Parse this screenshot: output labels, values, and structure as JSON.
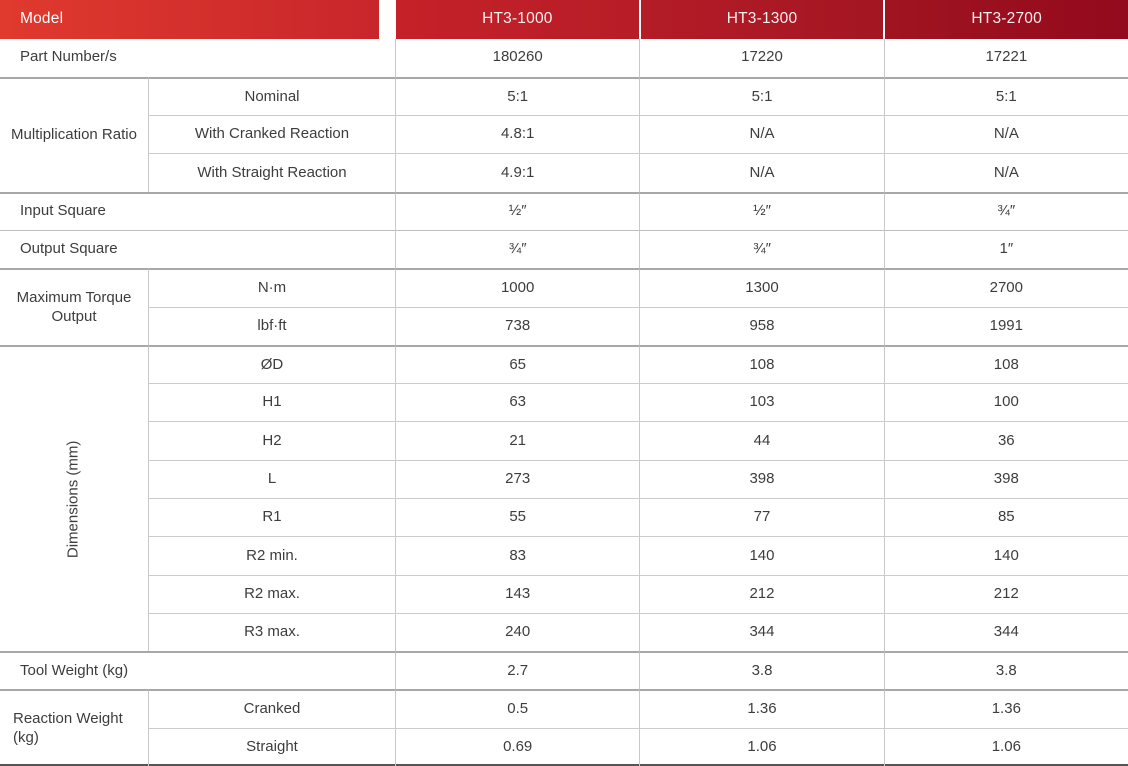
{
  "header": {
    "model_label": "Model",
    "columns": [
      "HT3-1000",
      "HT3-1300",
      "HT3-2700"
    ]
  },
  "rows": {
    "part_number": {
      "label": "Part Number/s",
      "values": [
        "180260",
        "17220",
        "17221"
      ]
    },
    "multiplication_ratio": {
      "group_label": "Multiplication Ratio",
      "nominal": {
        "label": "Nominal",
        "values": [
          "5:1",
          "5:1",
          "5:1"
        ]
      },
      "cranked": {
        "label": "With Cranked Reaction",
        "values": [
          "4.8:1",
          "N/A",
          "N/A"
        ]
      },
      "straight": {
        "label": "With Straight Reaction",
        "values": [
          "4.9:1",
          "N/A",
          "N/A"
        ]
      }
    },
    "input_square": {
      "label": "Input Square",
      "values": [
        "½″",
        "½″",
        "¾″"
      ]
    },
    "output_square": {
      "label": "Output Square",
      "values": [
        "¾″",
        "¾″",
        "1″"
      ]
    },
    "max_torque": {
      "group_label": "Maximum Torque Output",
      "nm": {
        "label": "N·m",
        "values": [
          "1000",
          "1300",
          "2700"
        ]
      },
      "lbfft": {
        "label": "lbf·ft",
        "values": [
          "738",
          "958",
          "1991"
        ]
      }
    },
    "dimensions": {
      "group_label": "Dimensions (mm)",
      "od": {
        "label": "ØD",
        "values": [
          "65",
          "108",
          "108"
        ]
      },
      "h1": {
        "label": "H1",
        "values": [
          "63",
          "103",
          "100"
        ]
      },
      "h2": {
        "label": "H2",
        "values": [
          "21",
          "44",
          "36"
        ]
      },
      "l": {
        "label": "L",
        "values": [
          "273",
          "398",
          "398"
        ]
      },
      "r1": {
        "label": "R1",
        "values": [
          "55",
          "77",
          "85"
        ]
      },
      "r2min": {
        "label": "R2 min.",
        "values": [
          "83",
          "140",
          "140"
        ]
      },
      "r2max": {
        "label": "R2 max.",
        "values": [
          "143",
          "212",
          "212"
        ]
      },
      "r3max": {
        "label": "R3 max.",
        "values": [
          "240",
          "344",
          "344"
        ]
      }
    },
    "tool_weight": {
      "label": "Tool Weight (kg)",
      "values": [
        "2.7",
        "3.8",
        "3.8"
      ]
    },
    "reaction_weight": {
      "group_label": "Reaction Weight (kg)",
      "cranked": {
        "label": "Cranked",
        "values": [
          "0.5",
          "1.36",
          "1.36"
        ]
      },
      "straight": {
        "label": "Straight",
        "values": [
          "0.69",
          "1.06",
          "1.06"
        ]
      }
    }
  },
  "colors": {
    "header_gradient_start": "#e03a2e",
    "header_gradient_end": "#930a1e",
    "header_text": "#ffffff",
    "body_text": "#3d3d3d",
    "border_thin": "#cccccc",
    "border_thick": "#a8a8a8",
    "border_bottom": "#555555"
  }
}
